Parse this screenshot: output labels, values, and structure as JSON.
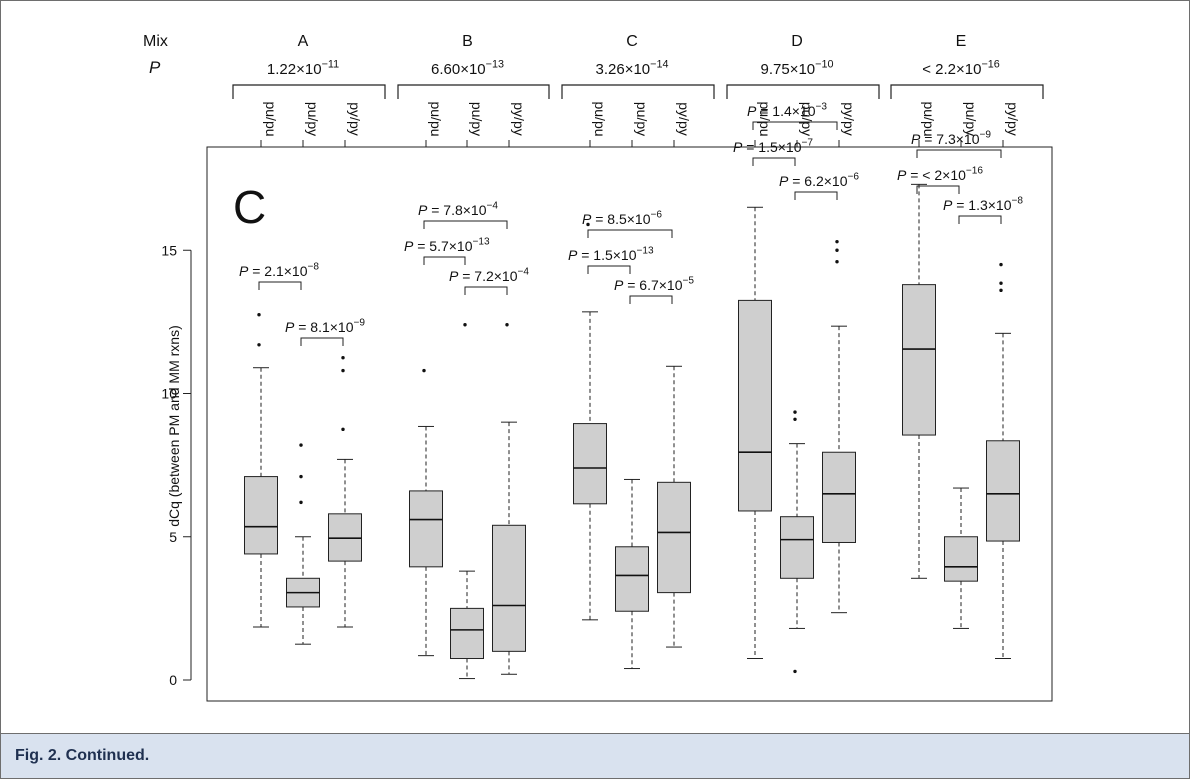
{
  "caption": "Fig. 2. Continued.",
  "chart_data": {
    "type": "box",
    "panel_label": "C",
    "row_labels": {
      "mix": "Mix",
      "p": "P"
    },
    "ylabel": "dCq (between PM and MM rxns)",
    "ylim": [
      0,
      18
    ],
    "yticks": [
      0,
      5,
      10,
      15
    ],
    "box_fill": "#cfcfcf",
    "groups": [
      {
        "mix": "A",
        "p_base": "1.22",
        "p_exp": "−11",
        "boxes": [
          {
            "label": "pu/pu",
            "whisker_low": 1.85,
            "q1": 4.4,
            "median": 5.35,
            "q3": 7.1,
            "whisker_high": 10.9,
            "outliers": [
              11.7,
              12.75
            ]
          },
          {
            "label": "pu/py",
            "whisker_low": 1.25,
            "q1": 2.55,
            "median": 3.05,
            "q3": 3.55,
            "whisker_high": 5.0,
            "outliers": [
              6.2,
              7.1,
              8.2
            ]
          },
          {
            "label": "py/py",
            "whisker_low": 1.85,
            "q1": 4.15,
            "median": 4.95,
            "q3": 5.8,
            "whisker_high": 7.7,
            "outliers": [
              8.75,
              10.8,
              11.25
            ]
          }
        ],
        "comparisons": [
          {
            "from": 0,
            "to": 1,
            "level": 1,
            "p_base": "2.1",
            "p_exp": "−8"
          },
          {
            "from": 1,
            "to": 2,
            "level": 0,
            "p_base": "8.1",
            "p_exp": "−9"
          }
        ]
      },
      {
        "mix": "B",
        "p_base": "6.60",
        "p_exp": "−13",
        "boxes": [
          {
            "label": "pu/pu",
            "whisker_low": 0.85,
            "q1": 3.95,
            "median": 5.6,
            "q3": 6.6,
            "whisker_high": 8.85,
            "outliers": [
              10.8
            ]
          },
          {
            "label": "pu/py",
            "whisker_low": 0.05,
            "q1": 0.75,
            "median": 1.75,
            "q3": 2.5,
            "whisker_high": 3.8,
            "outliers": [
              12.4
            ]
          },
          {
            "label": "py/py",
            "whisker_low": 0.2,
            "q1": 1.0,
            "median": 2.6,
            "q3": 5.4,
            "whisker_high": 9.0,
            "outliers": [
              12.4
            ]
          }
        ],
        "comparisons": [
          {
            "from": 0,
            "to": 2,
            "level": 2,
            "p_base": "7.8",
            "p_exp": "−4"
          },
          {
            "from": 0,
            "to": 1,
            "level": 1,
            "p_base": "5.7",
            "p_exp": "−13"
          },
          {
            "from": 1,
            "to": 2,
            "level": 0,
            "p_base": "7.2",
            "p_exp": "−4"
          }
        ]
      },
      {
        "mix": "C",
        "p_base": "3.26",
        "p_exp": "−14",
        "boxes": [
          {
            "label": "pu/pu",
            "whisker_low": 2.1,
            "q1": 6.15,
            "median": 7.4,
            "q3": 8.95,
            "whisker_high": 12.85,
            "outliers": [
              15.9
            ]
          },
          {
            "label": "pu/py",
            "whisker_low": 0.4,
            "q1": 2.4,
            "median": 3.65,
            "q3": 4.65,
            "whisker_high": 7.0,
            "outliers": []
          },
          {
            "label": "py/py",
            "whisker_low": 1.15,
            "q1": 3.05,
            "median": 5.15,
            "q3": 6.9,
            "whisker_high": 10.95,
            "outliers": []
          }
        ],
        "comparisons": [
          {
            "from": 0,
            "to": 2,
            "level": 2,
            "p_base": "8.5",
            "p_exp": "−6"
          },
          {
            "from": 0,
            "to": 1,
            "level": 1,
            "p_base": "1.5",
            "p_exp": "−13"
          },
          {
            "from": 1,
            "to": 2,
            "level": 0,
            "p_base": "6.7",
            "p_exp": "−5"
          }
        ]
      },
      {
        "mix": "D",
        "p_base": "9.75",
        "p_exp": "−10",
        "boxes": [
          {
            "label": "pu/pu",
            "whisker_low": 0.75,
            "q1": 5.9,
            "median": 7.95,
            "q3": 13.25,
            "whisker_high": 16.5,
            "outliers": []
          },
          {
            "label": "pu/py",
            "whisker_low": 1.8,
            "q1": 3.55,
            "median": 4.9,
            "q3": 5.7,
            "whisker_high": 8.25,
            "outliers": [
              0.3,
              9.1,
              9.35
            ]
          },
          {
            "label": "py/py",
            "whisker_low": 2.35,
            "q1": 4.8,
            "median": 6.5,
            "q3": 7.95,
            "whisker_high": 12.35,
            "outliers": [
              14.6,
              15.0,
              15.3
            ]
          }
        ],
        "comparisons": [
          {
            "from": 0,
            "to": 2,
            "level": 2,
            "p_base": "1.4",
            "p_exp": "−3"
          },
          {
            "from": 0,
            "to": 1,
            "level": 1,
            "p_base": "1.5",
            "p_exp": "−7"
          },
          {
            "from": 1,
            "to": 2,
            "level": 0,
            "p_base": "6.2",
            "p_exp": "−6"
          }
        ]
      },
      {
        "mix": "E",
        "p_prefix": "< ",
        "p_base": "2.2",
        "p_exp": "−16",
        "boxes": [
          {
            "label": "pu/pu",
            "whisker_low": 3.55,
            "q1": 8.55,
            "median": 11.55,
            "q3": 13.8,
            "whisker_high": 17.3,
            "outliers": []
          },
          {
            "label": "pu/py",
            "whisker_low": 1.8,
            "q1": 3.45,
            "median": 3.95,
            "q3": 5.0,
            "whisker_high": 6.7,
            "outliers": []
          },
          {
            "label": "py/py",
            "whisker_low": 0.75,
            "q1": 4.85,
            "median": 6.5,
            "q3": 8.35,
            "whisker_high": 12.1,
            "outliers": [
              13.6,
              13.85,
              14.5
            ]
          }
        ],
        "comparisons": [
          {
            "from": 0,
            "to": 2,
            "level": 2,
            "p_base": "7.3",
            "p_exp": "−9"
          },
          {
            "from": 0,
            "to": 1,
            "level": 1,
            "p_prefix": "< ",
            "p_base": "2",
            "p_exp": "−16"
          },
          {
            "from": 1,
            "to": 2,
            "level": 0,
            "p_base": "1.3",
            "p_exp": "−8"
          }
        ]
      }
    ]
  }
}
